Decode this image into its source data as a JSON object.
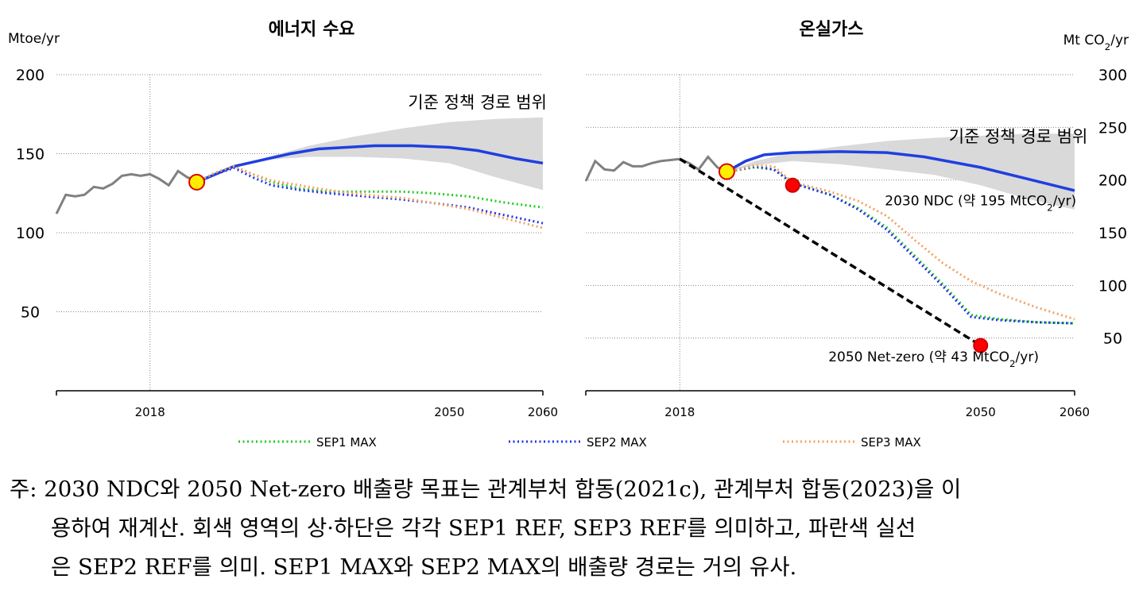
{
  "chart_data": [
    {
      "type": "line",
      "title": "에너지 수요",
      "ylabel": "Mtoe/yr",
      "y_axis_side": "left",
      "ylim": [
        0,
        200
      ],
      "xlim": [
        2008,
        2060
      ],
      "yticks": [
        50,
        100,
        150,
        200
      ],
      "xtick_labels": [
        "2018",
        "2050",
        "2060"
      ],
      "grid": "horizontal dotted",
      "band": {
        "name": "기준 정책 경로 범위",
        "upper": [
          [
            2024,
            134
          ],
          [
            2027,
            142
          ],
          [
            2030,
            147
          ],
          [
            2035,
            155
          ],
          [
            2040,
            161
          ],
          [
            2045,
            166
          ],
          [
            2050,
            170
          ],
          [
            2055,
            172
          ],
          [
            2060,
            173
          ]
        ],
        "lower": [
          [
            2024,
            134
          ],
          [
            2027,
            141
          ],
          [
            2030,
            146
          ],
          [
            2035,
            148
          ],
          [
            2040,
            148
          ],
          [
            2045,
            147
          ],
          [
            2050,
            144
          ],
          [
            2055,
            135
          ],
          [
            2060,
            127
          ]
        ]
      },
      "historical": [
        [
          2008,
          112
        ],
        [
          2009,
          124
        ],
        [
          2010,
          123
        ],
        [
          2011,
          124
        ],
        [
          2012,
          129
        ],
        [
          2013,
          128
        ],
        [
          2014,
          131
        ],
        [
          2015,
          136
        ],
        [
          2016,
          137
        ],
        [
          2017,
          136
        ],
        [
          2018,
          137
        ],
        [
          2019,
          134
        ],
        [
          2020,
          130
        ],
        [
          2021,
          139
        ],
        [
          2022,
          135
        ],
        [
          2023,
          133
        ]
      ],
      "series": [
        {
          "name": "SEP2 REF",
          "style": "solid",
          "color": "#1f3fe0",
          "points": [
            [
              2023,
              132
            ],
            [
              2025,
              137
            ],
            [
              2027,
              142
            ],
            [
              2030,
              146
            ],
            [
              2033,
              150
            ],
            [
              2036,
              153
            ],
            [
              2039,
              154
            ],
            [
              2042,
              155
            ],
            [
              2046,
              155
            ],
            [
              2050,
              154
            ],
            [
              2053,
              152
            ],
            [
              2057,
              147
            ],
            [
              2060,
              144
            ]
          ]
        },
        {
          "name": "SEP1 MAX",
          "style": "dotted",
          "color": "#22cc22",
          "points": [
            [
              2023,
              132
            ],
            [
              2025,
              138
            ],
            [
              2027,
              142
            ],
            [
              2029,
              137
            ],
            [
              2031,
              132
            ],
            [
              2034,
              128
            ],
            [
              2037,
              126
            ],
            [
              2041,
              126
            ],
            [
              2045,
              126
            ],
            [
              2048,
              125
            ],
            [
              2052,
              123
            ],
            [
              2056,
              119
            ],
            [
              2060,
              116
            ]
          ]
        },
        {
          "name": "SEP2 MAX",
          "style": "dotted",
          "color": "#2233ee",
          "points": [
            [
              2023,
              132
            ],
            [
              2025,
              137
            ],
            [
              2027,
              141
            ],
            [
              2029,
              135
            ],
            [
              2031,
              130
            ],
            [
              2034,
              127
            ],
            [
              2037,
              125
            ],
            [
              2041,
              123
            ],
            [
              2045,
              121
            ],
            [
              2048,
              119
            ],
            [
              2052,
              116
            ],
            [
              2056,
              111
            ],
            [
              2060,
              106
            ]
          ]
        },
        {
          "name": "SEP3 MAX",
          "style": "dotted",
          "color": "#f4a261",
          "points": [
            [
              2023,
              132
            ],
            [
              2025,
              138
            ],
            [
              2027,
              142
            ],
            [
              2029,
              137
            ],
            [
              2031,
              133
            ],
            [
              2034,
              130
            ],
            [
              2037,
              127
            ],
            [
              2041,
              124
            ],
            [
              2045,
              122
            ],
            [
              2048,
              119
            ],
            [
              2052,
              115
            ],
            [
              2056,
              109
            ],
            [
              2060,
              103
            ]
          ]
        }
      ],
      "markers": [
        {
          "name": "start",
          "x": 2023,
          "y": 132,
          "color": "#ffee00",
          "stroke": "#dd0000"
        }
      ],
      "annotations": [
        {
          "text": "기준 정책 경로 범위",
          "x": 2053,
          "y": 179
        }
      ]
    },
    {
      "type": "line",
      "title": "온실가스",
      "ylabel": "Mt CO₂/yr",
      "ylabel_main": "Mt CO",
      "ylabel_sub": "2",
      "ylabel_tail": "/yr",
      "y_axis_side": "right",
      "ylim": [
        0,
        300
      ],
      "xlim": [
        2008,
        2060
      ],
      "yticks": [
        50,
        100,
        150,
        200,
        250,
        300
      ],
      "xtick_labels": [
        "2018",
        "2050",
        "2060"
      ],
      "grid": "horizontal dotted",
      "band": {
        "name": "기준 정책 경로 범위",
        "upper": [
          [
            2023,
            208
          ],
          [
            2026,
            218
          ],
          [
            2030,
            226
          ],
          [
            2035,
            232
          ],
          [
            2040,
            237
          ],
          [
            2045,
            240
          ],
          [
            2050,
            242
          ],
          [
            2055,
            244
          ],
          [
            2060,
            244
          ]
        ],
        "lower": [
          [
            2023,
            208
          ],
          [
            2026,
            214
          ],
          [
            2030,
            218
          ],
          [
            2035,
            215
          ],
          [
            2040,
            210
          ],
          [
            2045,
            205
          ],
          [
            2050,
            195
          ],
          [
            2055,
            182
          ],
          [
            2060,
            172
          ]
        ]
      },
      "historical": [
        [
          2008,
          199
        ],
        [
          2009,
          218
        ],
        [
          2010,
          210
        ],
        [
          2011,
          209
        ],
        [
          2012,
          217
        ],
        [
          2013,
          213
        ],
        [
          2014,
          213
        ],
        [
          2015,
          216
        ],
        [
          2016,
          218
        ],
        [
          2017,
          219
        ],
        [
          2018,
          220
        ],
        [
          2019,
          216
        ],
        [
          2020,
          210
        ],
        [
          2021,
          222
        ],
        [
          2022,
          212
        ],
        [
          2023,
          208
        ]
      ],
      "series": [
        {
          "name": "SEP2 REF",
          "style": "solid",
          "color": "#1f3fe0",
          "points": [
            [
              2023,
              208
            ],
            [
              2025,
              218
            ],
            [
              2027,
              224
            ],
            [
              2030,
              226
            ],
            [
              2035,
              227
            ],
            [
              2040,
              226
            ],
            [
              2044,
              222
            ],
            [
              2050,
              212
            ],
            [
              2055,
              201
            ],
            [
              2060,
              190
            ]
          ]
        },
        {
          "name": "경로",
          "style": "dashed",
          "color": "#000000",
          "points": [
            [
              2018,
              220
            ],
            [
              2050,
              43
            ]
          ]
        },
        {
          "name": "SEP1 MAX",
          "style": "dotted",
          "color": "#22cc22",
          "points": [
            [
              2023,
              208
            ],
            [
              2026,
              212
            ],
            [
              2028,
              210
            ],
            [
              2030,
              197
            ],
            [
              2034,
              186
            ],
            [
              2037,
              173
            ],
            [
              2040,
              155
            ],
            [
              2043,
              128
            ],
            [
              2046,
              101
            ],
            [
              2049,
              72
            ],
            [
              2052,
              68
            ],
            [
              2056,
              65
            ],
            [
              2060,
              64
            ]
          ]
        },
        {
          "name": "SEP2 MAX",
          "style": "dotted",
          "color": "#2233ee",
          "points": [
            [
              2023,
              208
            ],
            [
              2026,
              213
            ],
            [
              2028,
              210
            ],
            [
              2030,
              197
            ],
            [
              2034,
              186
            ],
            [
              2037,
              172
            ],
            [
              2040,
              153
            ],
            [
              2043,
              126
            ],
            [
              2046,
              99
            ],
            [
              2049,
              70
            ],
            [
              2052,
              67
            ],
            [
              2056,
              65
            ],
            [
              2060,
              64
            ]
          ]
        },
        {
          "name": "SEP3 MAX",
          "style": "dotted",
          "color": "#f4a261",
          "points": [
            [
              2023,
              208
            ],
            [
              2026,
              214
            ],
            [
              2028,
              213
            ],
            [
              2030,
              198
            ],
            [
              2034,
              189
            ],
            [
              2037,
              180
            ],
            [
              2040,
              166
            ],
            [
              2043,
              143
            ],
            [
              2046,
              121
            ],
            [
              2049,
              104
            ],
            [
              2052,
              92
            ],
            [
              2056,
              79
            ],
            [
              2060,
              68
            ]
          ]
        }
      ],
      "markers": [
        {
          "name": "start",
          "x": 2023,
          "y": 208,
          "color": "#ffee00",
          "stroke": "#dd0000"
        },
        {
          "name": "2030 NDC",
          "x": 2030,
          "y": 195,
          "color": "#ff0000",
          "stroke": "#cc0000"
        },
        {
          "name": "2050 Net-zero",
          "x": 2050,
          "y": 43,
          "color": "#ff0000",
          "stroke": "#cc0000"
        }
      ],
      "annotations": [
        {
          "text": "기준 정책 경로 범위",
          "x": 2054,
          "y": 236
        },
        {
          "pre": "2030 NDC (약 195 MtCO",
          "sub": "2",
          "post": "/yr)",
          "x": 2050,
          "y": 176
        },
        {
          "pre": "2050 Net-zero (약 43 MtCO",
          "sub": "2",
          "post": "/yr)",
          "x": 2045,
          "y": 28
        }
      ]
    }
  ],
  "legend": [
    {
      "label": "SEP1 MAX",
      "color": "#22cc22"
    },
    {
      "label": "SEP2 MAX",
      "color": "#2233ee"
    },
    {
      "label": "SEP3 MAX",
      "color": "#f4a261"
    }
  ],
  "note": {
    "line1": "주: 2030 NDC와 2050 Net-zero 배출량 목표는 관계부처 합동(2021c), 관계부처 합동(2023)을 이",
    "line2": "용하여 재계산. 회색 영역의 상·하단은 각각 SEP1 REF, SEP3 REF를 의미하고, 파란색 실선",
    "line3": "은 SEP2 REF를 의미. SEP1 MAX와 SEP2 MAX의 배출량 경로는 거의 유사."
  }
}
